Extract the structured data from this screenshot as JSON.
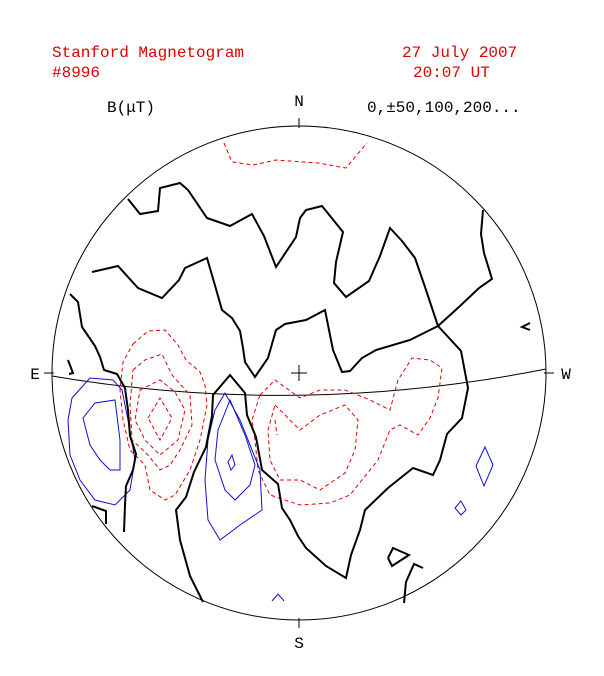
{
  "header": {
    "title": "Stanford Magnetogram",
    "id": "#8996",
    "date": "27 July 2007",
    "time": "20:07 UT"
  },
  "plot": {
    "unit_label": "B(μT)",
    "levels_label": "0,±50,100,200...",
    "directions": {
      "north": "N",
      "south": "S",
      "east": "E",
      "west": "W"
    }
  }
}
